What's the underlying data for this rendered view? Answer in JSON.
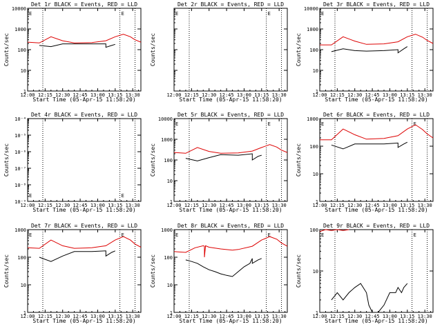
{
  "figure": {
    "series_colors": {
      "events": "#000000",
      "lld": "#dd0000"
    },
    "common_xlabel": "Start Time (05-Apr-15 11:58:20)",
    "common_ylabel": "Counts/sec",
    "x_tick_labels": [
      "12:00",
      "12:15",
      "12:30",
      "12:45",
      "13:00",
      "13:15",
      "13:30"
    ],
    "x_range_minutes_after_1200": [
      0,
      97
    ],
    "dotted_marker_minutes_after_1200": [
      13,
      79,
      92
    ]
  },
  "chart_data": [
    {
      "title": "Det 1r BLACK = Events, RED = LLD",
      "type": "line",
      "yscale": "log",
      "ylim": [
        1,
        10000
      ],
      "y_tick_labels": [
        "1",
        "10",
        "100",
        "1000",
        "10000"
      ],
      "saa_markers": [
        "E",
        "E"
      ],
      "series": [
        {
          "name": "Events",
          "x": [
            10,
            10,
            20,
            30,
            40,
            55,
            67,
            67,
            72,
            75
          ],
          "y": [
            null,
            160,
            140,
            190,
            190,
            190,
            190,
            130,
            160,
            180
          ]
        },
        {
          "name": "LLD",
          "x": [
            0,
            10,
            20,
            30,
            40,
            55,
            67,
            75,
            82,
            88,
            92,
            97
          ],
          "y": [
            230,
            210,
            420,
            270,
            210,
            220,
            270,
            420,
            560,
            420,
            300,
            230
          ]
        }
      ]
    },
    {
      "title": "Det 2r BLACK = Events, RED = LLD",
      "type": "line",
      "yscale": "log",
      "ylim": [
        1,
        10000
      ],
      "y_tick_labels": [],
      "saa_markers": [
        "E",
        "E"
      ],
      "series": []
    },
    {
      "title": "Det 3r BLACK = Events, RED = LLD",
      "type": "line",
      "yscale": "log",
      "ylim": [
        1,
        10000
      ],
      "y_tick_labels": [
        "1",
        "10",
        "100",
        "1000",
        "10000"
      ],
      "saa_markers": [
        "E"
      ],
      "series": [
        {
          "name": "Events",
          "x": [
            10,
            10,
            20,
            30,
            40,
            55,
            67,
            67,
            72,
            75
          ],
          "y": [
            null,
            80,
            110,
            90,
            85,
            90,
            100,
            70,
            110,
            140
          ]
        },
        {
          "name": "LLD",
          "x": [
            0,
            10,
            20,
            30,
            40,
            55,
            67,
            75,
            82,
            88,
            92,
            97
          ],
          "y": [
            170,
            170,
            420,
            260,
            180,
            190,
            240,
            420,
            560,
            400,
            280,
            200
          ]
        }
      ]
    },
    {
      "title": "Det 4r BLACK = Events, RED = LLD",
      "type": "line",
      "yscale": "log",
      "ylim": [
        1e-09,
        0.0001
      ],
      "y_tick_labels": [
        "10⁻⁹",
        "10⁻⁸",
        "10⁻⁷",
        "10⁻⁶",
        "10⁻⁵",
        "10⁻⁴"
      ],
      "saa_markers": [
        "E",
        "E"
      ],
      "series": []
    },
    {
      "title": "Det 5r BLACK = Events, RED = LLD",
      "type": "line",
      "yscale": "log",
      "ylim": [
        1,
        10000
      ],
      "y_tick_labels": [
        "1",
        "10",
        "100",
        "1000",
        "10000"
      ],
      "saa_markers": [
        "E",
        "E"
      ],
      "series": [
        {
          "name": "Events",
          "x": [
            10,
            10,
            20,
            30,
            40,
            55,
            67,
            67,
            72,
            75
          ],
          "y": [
            null,
            120,
            90,
            130,
            180,
            170,
            200,
            100,
            150,
            170
          ]
        },
        {
          "name": "LLD",
          "x": [
            0,
            10,
            20,
            30,
            40,
            55,
            67,
            75,
            82,
            88,
            92,
            97
          ],
          "y": [
            230,
            210,
            400,
            260,
            210,
            220,
            270,
            400,
            560,
            420,
            300,
            230
          ]
        }
      ]
    },
    {
      "title": "Det 6r BLACK = Events, RED = LLD",
      "type": "line",
      "yscale": "log",
      "ylim": [
        1,
        1000
      ],
      "y_tick_labels": [
        "1",
        "10",
        "100",
        "1000"
      ],
      "saa_markers": [
        "E",
        "E"
      ],
      "series": [
        {
          "name": "Events",
          "x": [
            10,
            10,
            20,
            30,
            40,
            55,
            67,
            67,
            72,
            75
          ],
          "y": [
            null,
            110,
            80,
            120,
            120,
            120,
            130,
            90,
            120,
            140
          ]
        },
        {
          "name": "LLD",
          "x": [
            0,
            10,
            20,
            30,
            40,
            55,
            67,
            75,
            82,
            88,
            92,
            97
          ],
          "y": [
            170,
            170,
            420,
            260,
            180,
            190,
            240,
            420,
            600,
            400,
            280,
            200
          ]
        }
      ]
    },
    {
      "title": "Det 7r BLACK = Events, RED = LLD",
      "type": "line",
      "yscale": "log",
      "ylim": [
        1,
        1000
      ],
      "y_tick_labels": [
        "1",
        "10",
        "100",
        "1000"
      ],
      "saa_markers": [
        "E",
        "E"
      ],
      "series": [
        {
          "name": "Events",
          "x": [
            10,
            10,
            20,
            30,
            40,
            55,
            67,
            67,
            72,
            75
          ],
          "y": [
            null,
            100,
            70,
            110,
            160,
            160,
            170,
            110,
            150,
            170
          ]
        },
        {
          "name": "LLD",
          "x": [
            0,
            10,
            20,
            30,
            40,
            55,
            67,
            75,
            82,
            88,
            92,
            97
          ],
          "y": [
            220,
            210,
            420,
            260,
            210,
            220,
            260,
            420,
            560,
            420,
            300,
            230
          ]
        }
      ]
    },
    {
      "title": "Det 8r BLACK = Events, RED = LLD",
      "type": "line",
      "yscale": "log",
      "ylim": [
        1,
        1000
      ],
      "y_tick_labels": [
        "1",
        "10",
        "100",
        "1000"
      ],
      "saa_markers": [
        "E",
        "E"
      ],
      "series": [
        {
          "name": "Events",
          "x": [
            10,
            10,
            15,
            20,
            25,
            30,
            35,
            40,
            45,
            50,
            55,
            60,
            65,
            67,
            67,
            72,
            75
          ],
          "y": [
            null,
            80,
            70,
            60,
            45,
            35,
            30,
            25,
            22,
            20,
            30,
            45,
            60,
            90,
            60,
            80,
            90
          ]
        },
        {
          "name": "LLD",
          "x": [
            0,
            10,
            18,
            25,
            26,
            26,
            27,
            30,
            40,
            50,
            55,
            67,
            75,
            82,
            88,
            92,
            97
          ],
          "y": [
            160,
            150,
            220,
            260,
            250,
            100,
            260,
            230,
            200,
            180,
            190,
            250,
            420,
            560,
            450,
            330,
            250
          ]
        }
      ]
    },
    {
      "title": "Det 9r BLACK = Events, RED = LLD",
      "type": "line",
      "yscale": "log",
      "ylim": [
        1,
        100
      ],
      "y_tick_labels": [
        "1",
        "10",
        "100"
      ],
      "saa_markers": [
        "E",
        "E"
      ],
      "series": [
        {
          "name": "Events",
          "x": [
            10,
            10,
            15,
            20,
            25,
            30,
            35,
            40,
            42,
            45,
            50,
            55,
            60,
            65,
            67,
            70,
            72,
            75
          ],
          "y": [
            null,
            2,
            3,
            2,
            3,
            4,
            5,
            3,
            1.5,
            1,
            1,
            1.5,
            3,
            3,
            4,
            3,
            4,
            5
          ]
        },
        {
          "name": "LLD",
          "x": [
            0,
            5,
            10,
            15,
            20,
            25
          ],
          "y": [
            90,
            100,
            95,
            100,
            95,
            100
          ]
        }
      ]
    }
  ]
}
